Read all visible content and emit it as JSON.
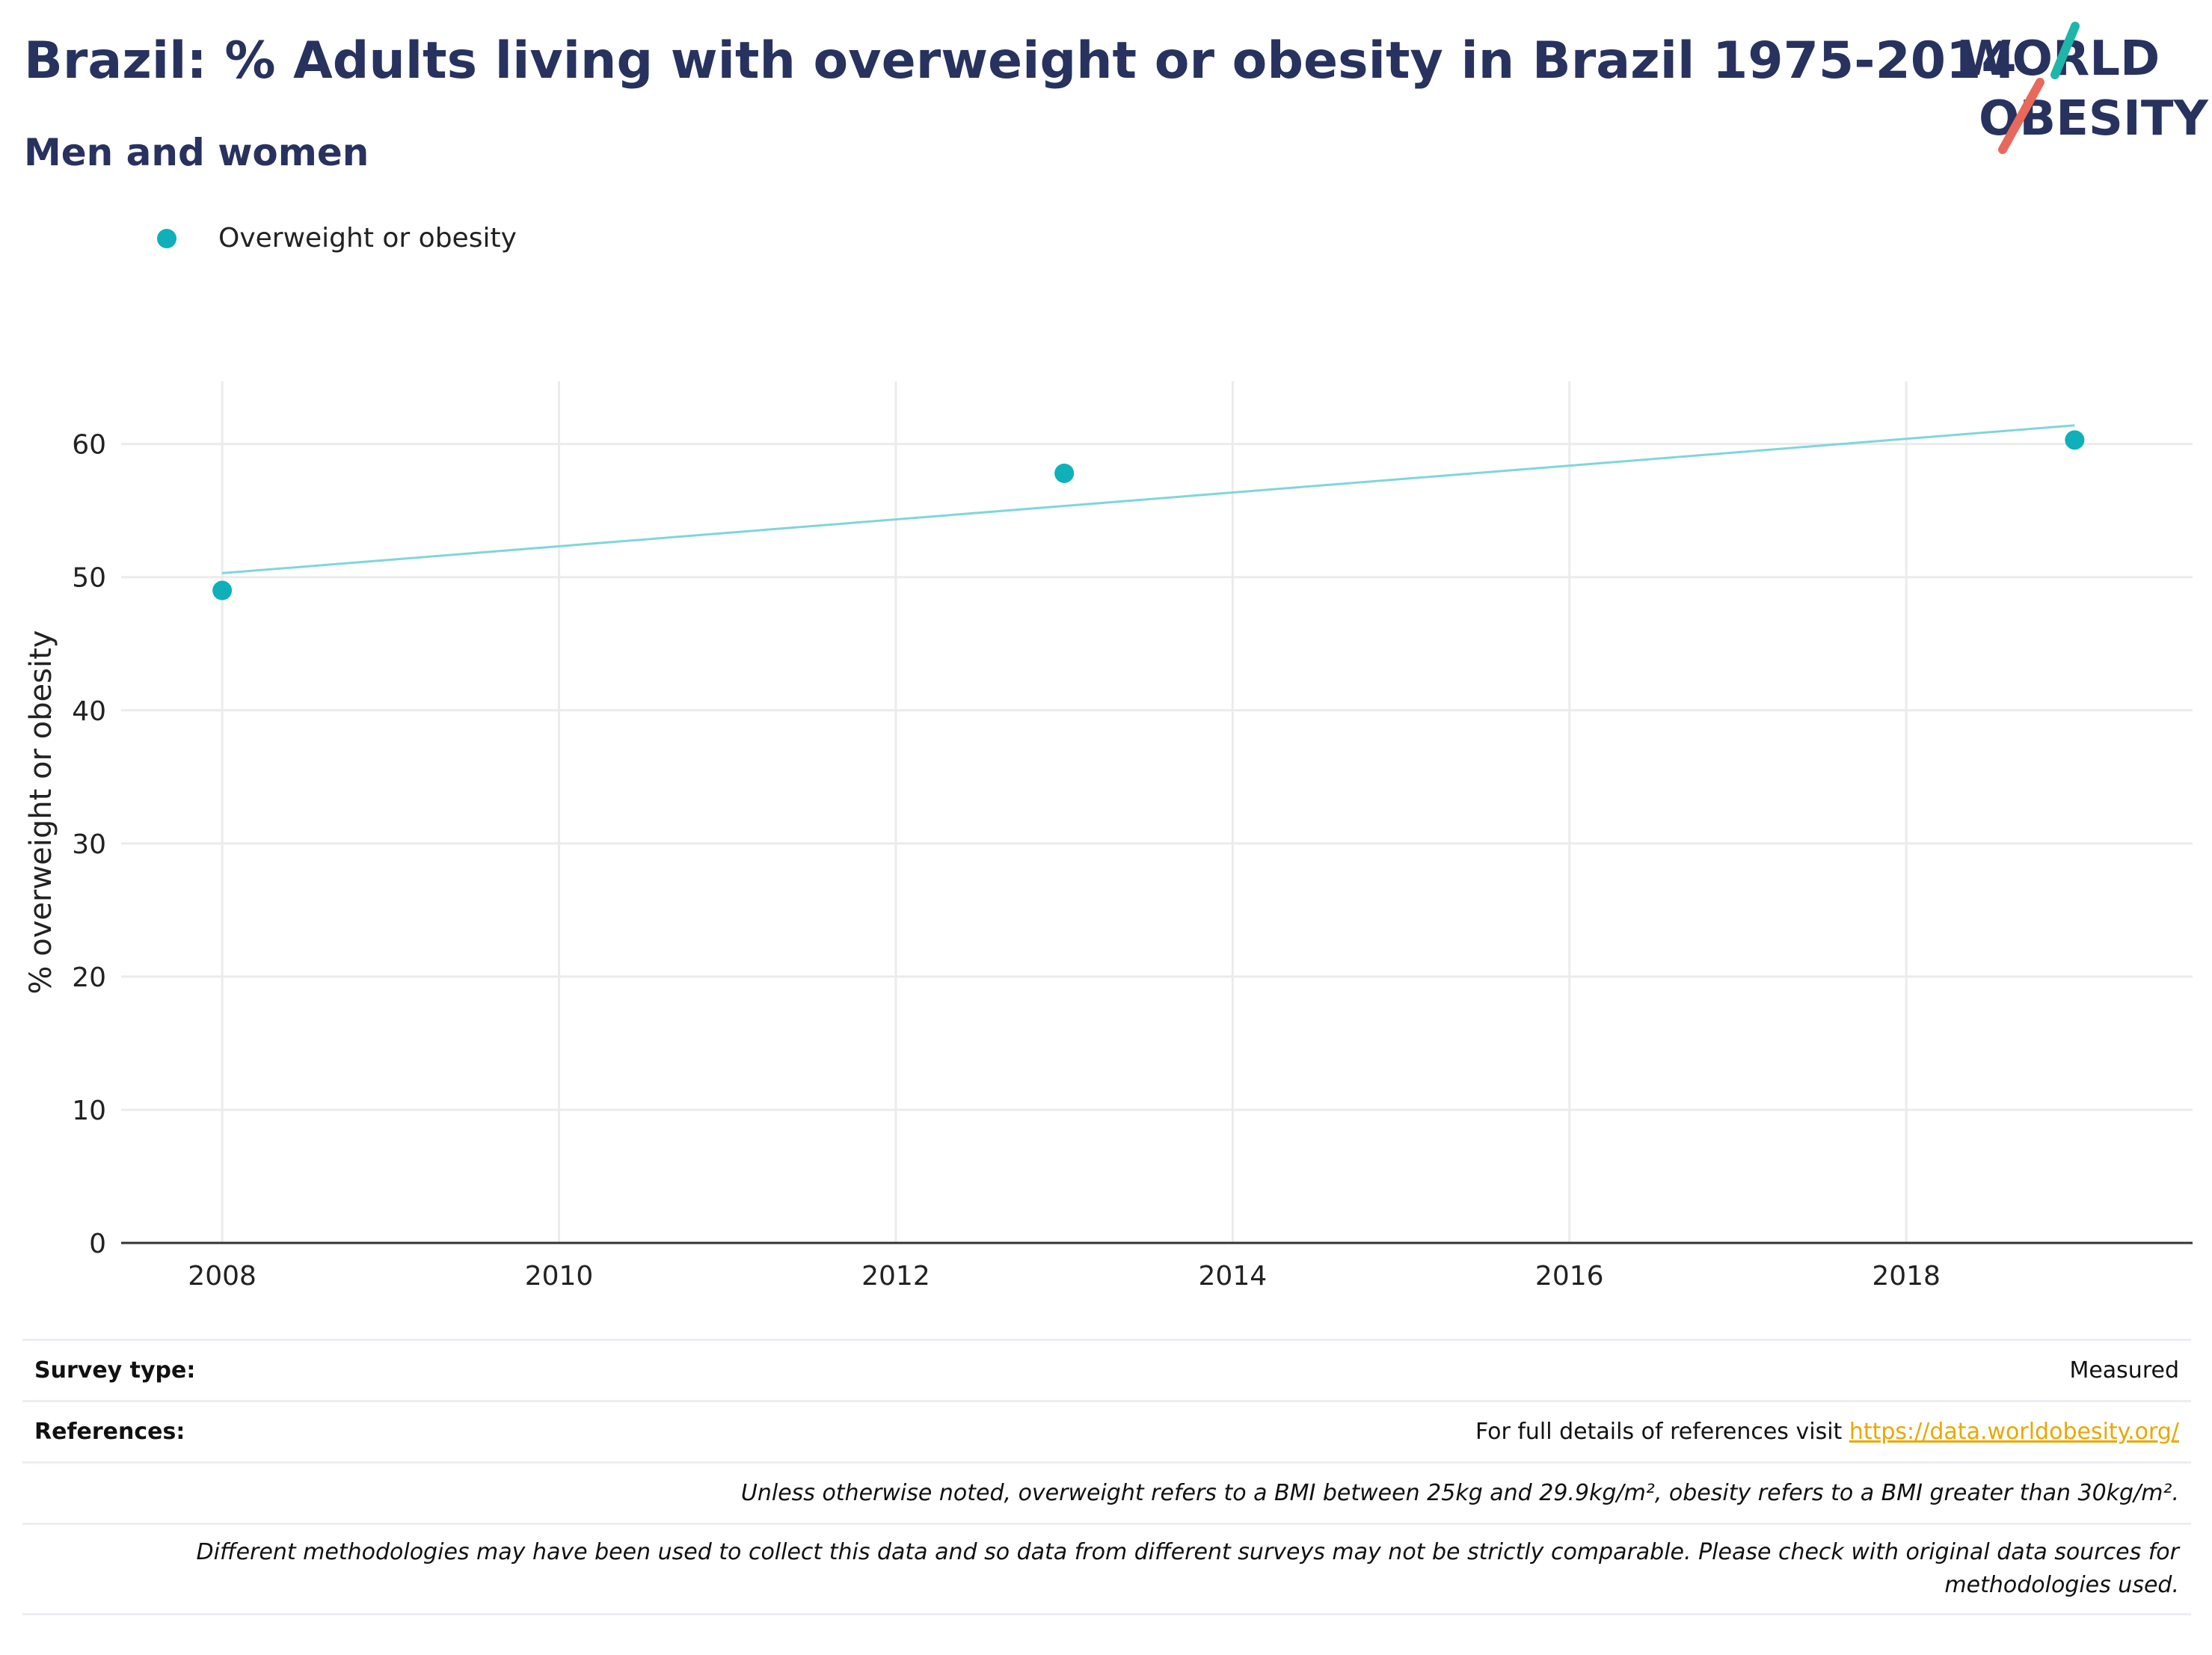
{
  "header": {
    "title": "Brazil: % Adults living with overweight or obesity in Brazil 1975-2014",
    "subtitle": "Men and women"
  },
  "logo": {
    "line1": "WORLD",
    "line2": "OBESITY"
  },
  "colors": {
    "accent": "#0fb0ba",
    "trend": "#7fd6db",
    "title": "#27325f",
    "link": "#e8a800"
  },
  "chart_data": {
    "type": "scatter",
    "title": "Brazil: % Adults living with overweight or obesity in Brazil 1975-2014",
    "subtitle": "Men and women",
    "xlabel": "",
    "ylabel": "% overweight or obesity",
    "xlim": [
      2007.4,
      2019.7
    ],
    "ylim": [
      0,
      64.7
    ],
    "xticks": [
      2008,
      2010,
      2012,
      2014,
      2016,
      2018
    ],
    "yticks": [
      0,
      10,
      20,
      30,
      40,
      50,
      60
    ],
    "grid": true,
    "legend_position": "top-left",
    "series": [
      {
        "name": "Overweight or obesity",
        "x": [
          2008,
          2013,
          2019
        ],
        "y": [
          49.0,
          57.8,
          60.3
        ]
      }
    ],
    "trendline": {
      "x": [
        2008,
        2019
      ],
      "y": [
        50.3,
        61.4
      ]
    }
  },
  "footer": {
    "survey_type_label": "Survey type:",
    "survey_type_value": "Measured",
    "references_label": "References:",
    "references_text": "For full details of references visit ",
    "references_link": "https://data.worldobesity.org/",
    "note1": "Unless otherwise noted, overweight refers to a BMI between 25kg and 29.9kg/m², obesity refers to a BMI greater than 30kg/m².",
    "note2": "Different methodologies may have been used to collect this data and so data from different surveys may not be strictly comparable. Please check with original data sources for methodologies used."
  }
}
